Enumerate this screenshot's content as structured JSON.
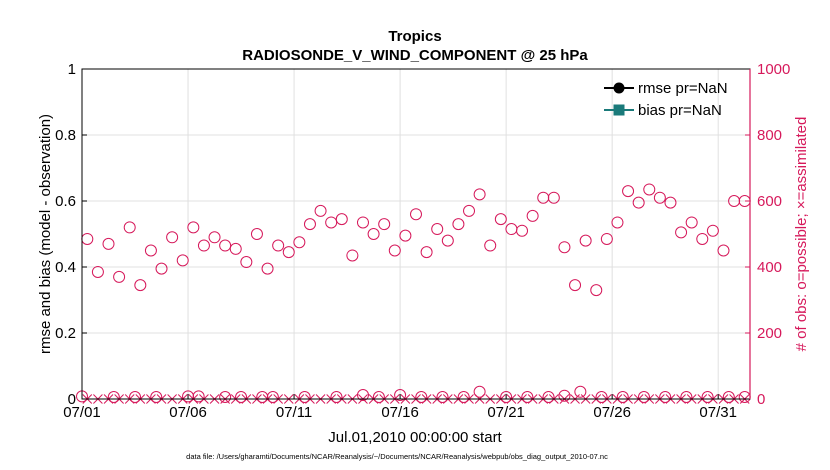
{
  "colors": {
    "left_axis": "#000000",
    "right_axis": "#d6195b",
    "bias": "#1a7a7a",
    "grid": "#e0e0e0"
  },
  "chart_data": {
    "type": "scatter",
    "title": "Tropics",
    "subtitle": "RADIOSONDE_V_WIND_COMPONENT @ 25 hPa",
    "xlabel": "Jul.01,2010 00:00:00 start",
    "ylabel_left": "rmse and bias (model - observation)",
    "ylabel_right": "# of obs: o=possible; ×=assimilated",
    "footnote": "data file: /Users/gharamti/Documents/NCAR/Reanalysis/~/Documents/NCAR/Reanalysis/webpub/obs_diag_output_2010-07.nc",
    "x_range": [
      0,
      31.5
    ],
    "ylim_left": [
      0,
      1
    ],
    "ylim_right": [
      0,
      1000
    ],
    "x_ticks": [
      {
        "x": 0,
        "label": "07/01"
      },
      {
        "x": 5,
        "label": "07/06"
      },
      {
        "x": 10,
        "label": "07/11"
      },
      {
        "x": 15,
        "label": "07/16"
      },
      {
        "x": 20,
        "label": "07/21"
      },
      {
        "x": 25,
        "label": "07/26"
      },
      {
        "x": 30,
        "label": "07/31"
      }
    ],
    "y_ticks_left": [
      {
        "v": 0,
        "label": "0"
      },
      {
        "v": 0.2,
        "label": "0.2"
      },
      {
        "v": 0.4,
        "label": "0.4"
      },
      {
        "v": 0.6,
        "label": "0.6"
      },
      {
        "v": 0.8,
        "label": "0.8"
      },
      {
        "v": 1,
        "label": "1"
      }
    ],
    "y_ticks_right": [
      {
        "v": 0,
        "label": "0"
      },
      {
        "v": 200,
        "label": "200"
      },
      {
        "v": 400,
        "label": "400"
      },
      {
        "v": 600,
        "label": "600"
      },
      {
        "v": 800,
        "label": "800"
      },
      {
        "v": 1000,
        "label": "1000"
      }
    ],
    "legend": [
      {
        "name": "rmse pr=NaN",
        "marker": "circle"
      },
      {
        "name": "bias pr=NaN",
        "marker": "square"
      }
    ],
    "series": [
      {
        "name": "obs possible",
        "marker": "circle",
        "axis": "right",
        "x": [
          0.25,
          0.75,
          1.25,
          1.75,
          2.25,
          2.75,
          3.25,
          3.75,
          4.25,
          4.75,
          5.25,
          5.75,
          6.25,
          6.75,
          7.25,
          7.75,
          8.25,
          8.75,
          9.25,
          9.75,
          10.25,
          10.75,
          11.25,
          11.75,
          12.25,
          12.75,
          13.25,
          13.75,
          14.25,
          14.75,
          15.25,
          15.75,
          16.25,
          16.75,
          17.25,
          17.75,
          18.25,
          18.75,
          19.25,
          19.75,
          20.25,
          20.75,
          21.25,
          21.75,
          22.25,
          22.75,
          23.25,
          23.75,
          24.25,
          24.75,
          25.25,
          25.75,
          26.25,
          26.75,
          27.25,
          27.75,
          28.25,
          28.75,
          29.25,
          29.75,
          30.25,
          30.75,
          31.25
        ],
        "y": [
          485,
          385,
          470,
          370,
          520,
          345,
          450,
          395,
          490,
          420,
          520,
          465,
          490,
          465,
          455,
          415,
          500,
          395,
          465,
          445,
          475,
          530,
          570,
          535,
          545,
          435,
          535,
          500,
          530,
          450,
          495,
          560,
          445,
          515,
          480,
          530,
          570,
          620,
          465,
          545,
          515,
          510,
          555,
          610,
          610,
          460,
          345,
          480,
          330,
          485,
          535,
          630,
          595,
          635,
          610,
          595,
          505,
          535,
          485,
          510,
          450,
          600,
          600
        ]
      },
      {
        "name": "obs assimilated",
        "marker": "x",
        "axis": "right",
        "x": [
          0.25,
          0.75,
          1.25,
          1.75,
          2.25,
          2.75,
          3.25,
          3.75,
          4.25,
          4.75,
          5.25,
          5.75,
          6.25,
          6.75,
          7.25,
          7.75,
          8.25,
          8.75,
          9.25,
          9.75,
          10.25,
          10.75,
          11.25,
          11.75,
          12.25,
          12.75,
          13.25,
          13.75,
          14.25,
          14.75,
          15.25,
          15.75,
          16.25,
          16.75,
          17.25,
          17.75,
          18.25,
          18.75,
          19.25,
          19.75,
          20.25,
          20.75,
          21.25,
          21.75,
          22.25,
          22.75,
          23.25,
          23.75,
          24.25,
          24.75,
          25.25,
          25.75,
          26.25,
          26.75,
          27.25,
          27.75,
          28.25,
          28.75,
          29.25,
          29.75,
          30.25,
          30.75,
          31.25
        ],
        "y": [
          0,
          0,
          0,
          0,
          0,
          0,
          0,
          0,
          0,
          0,
          0,
          0,
          0,
          0,
          0,
          0,
          0,
          0,
          0,
          0,
          0,
          0,
          0,
          0,
          0,
          0,
          0,
          0,
          0,
          0,
          0,
          0,
          0,
          0,
          0,
          0,
          0,
          0,
          0,
          0,
          0,
          0,
          0,
          0,
          0,
          0,
          0,
          0,
          0,
          0,
          0,
          0,
          0,
          0,
          0,
          0,
          0,
          0,
          0,
          0,
          0,
          0,
          0
        ]
      },
      {
        "name": "obs possible (low)",
        "marker": "circle",
        "axis": "right",
        "x": [
          0,
          1.5,
          2.5,
          3.5,
          5,
          5.5,
          6.75,
          7.5,
          8.5,
          9,
          10.5,
          12,
          13.25,
          14,
          15,
          16,
          17,
          18,
          18.75,
          20,
          21,
          22,
          22.75,
          23.5,
          24.5,
          25.5,
          26.5,
          27.5,
          28.5,
          29.5,
          30.5,
          31.25
        ],
        "y": [
          8,
          6,
          6,
          6,
          8,
          8,
          6,
          6,
          6,
          6,
          6,
          6,
          12,
          6,
          12,
          6,
          6,
          6,
          22,
          6,
          6,
          6,
          10,
          22,
          6,
          6,
          6,
          6,
          6,
          6,
          6,
          6
        ]
      }
    ]
  }
}
